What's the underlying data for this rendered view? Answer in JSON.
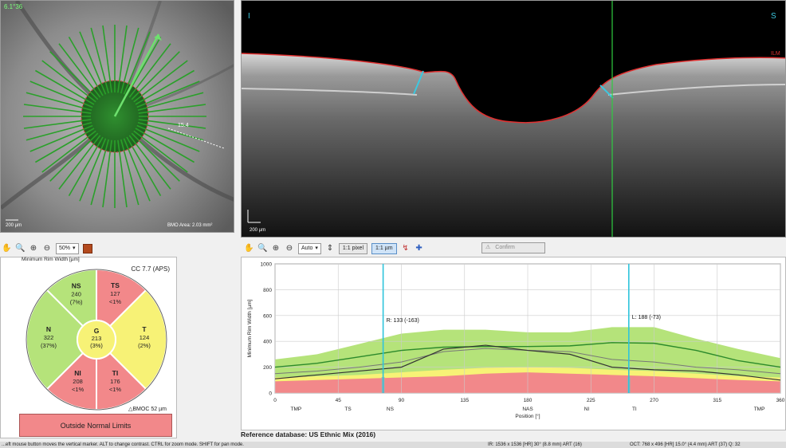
{
  "fundus": {
    "corner_label": "6.1°36",
    "scale_bar": "200 µm",
    "bmo_area": "BMO Area: 2.03 mm²",
    "distance_label": "15.4"
  },
  "oct": {
    "left_label": "I",
    "right_label": "S",
    "ilm_label": "ILM",
    "scale_bar": "200 µm"
  },
  "toolbar_left": {
    "zoom_select": "50%"
  },
  "toolbar_right": {
    "zoom_select": "Auto",
    "pixel_btn": "1:1 pixel",
    "um_btn": "1:1 µm",
    "confirm_btn": "Confirm"
  },
  "rim": {
    "header": "Minimum Rim Width [µm]",
    "classification": "CC 7.7 (APS)",
    "bmo_label": "BMOC 52 µm",
    "status": "Outside Normal Limits",
    "colors": {
      "normal": "#b5e37a",
      "borderline": "#f7f276",
      "outside": "#f2888a"
    },
    "sectors": {
      "NS": {
        "name": "NS",
        "value": "240",
        "pct": "(7%)"
      },
      "TS": {
        "name": "TS",
        "value": "127",
        "pct": "<1%"
      },
      "T": {
        "name": "T",
        "value": "124",
        "pct": "(2%)"
      },
      "TI": {
        "name": "TI",
        "value": "176",
        "pct": "<1%"
      },
      "NI": {
        "name": "NI",
        "value": "208",
        "pct": "<1%"
      },
      "N": {
        "name": "N",
        "value": "322",
        "pct": "(37%)"
      },
      "G": {
        "name": "G",
        "value": "213",
        "pct": "(3%)"
      }
    }
  },
  "chart_data": {
    "type": "line",
    "ylabel": "Minimum Rim Width [µm]",
    "xlabel": "Position [°]",
    "ylim": [
      0,
      1000
    ],
    "xlim": [
      0,
      360
    ],
    "y_ticks": [
      "0",
      "200",
      "400",
      "600",
      "800",
      "1000"
    ],
    "x_ticks": [
      "0",
      "45",
      "90",
      "135",
      "180",
      "225",
      "270",
      "315",
      "360"
    ],
    "sectors": [
      "TMP",
      "TS",
      "NS",
      "NAS",
      "NI",
      "TI",
      "TMP"
    ],
    "markers": [
      {
        "label": "R: 133 (-163)",
        "x": 77
      },
      {
        "label": "L: 188 (-73)",
        "x": 252
      }
    ],
    "x": [
      0,
      30,
      60,
      90,
      120,
      150,
      180,
      210,
      240,
      270,
      300,
      330,
      360
    ],
    "series": [
      {
        "name": "normal_upper",
        "values": [
          260,
          300,
          380,
          460,
          490,
          490,
          470,
          470,
          510,
          510,
          420,
          340,
          270
        ]
      },
      {
        "name": "borderline_upper",
        "values": [
          120,
          130,
          140,
          160,
          180,
          195,
          200,
          195,
          180,
          170,
          150,
          130,
          120
        ]
      },
      {
        "name": "outside_upper",
        "values": [
          90,
          100,
          110,
          120,
          130,
          150,
          160,
          150,
          140,
          130,
          115,
          100,
          90
        ]
      },
      {
        "name": "reference_mean",
        "values": [
          200,
          230,
          280,
          330,
          355,
          360,
          360,
          365,
          390,
          385,
          330,
          250,
          200
        ]
      },
      {
        "name": "measured",
        "values": [
          110,
          140,
          170,
          200,
          340,
          370,
          330,
          300,
          200,
          180,
          170,
          140,
          100
        ]
      },
      {
        "name": "measured_smooth",
        "values": [
          150,
          170,
          200,
          240,
          320,
          345,
          330,
          320,
          260,
          240,
          200,
          180,
          150
        ]
      }
    ]
  },
  "reference": "Reference database: US Ethnic Mix (2016)",
  "status_bar": {
    "left": "...eft mouse button moves the vertical marker. ALT to change contrast. CTRL for zoom mode. SHIFT for pan mode.",
    "mid": "IR: 1536 x 1536 [HR] 30° (8.8 mm) ART (16)",
    "right": "OCT: 768 x 496 [HR] 15.0° (4.4 mm) ART (37) Q: 32"
  }
}
